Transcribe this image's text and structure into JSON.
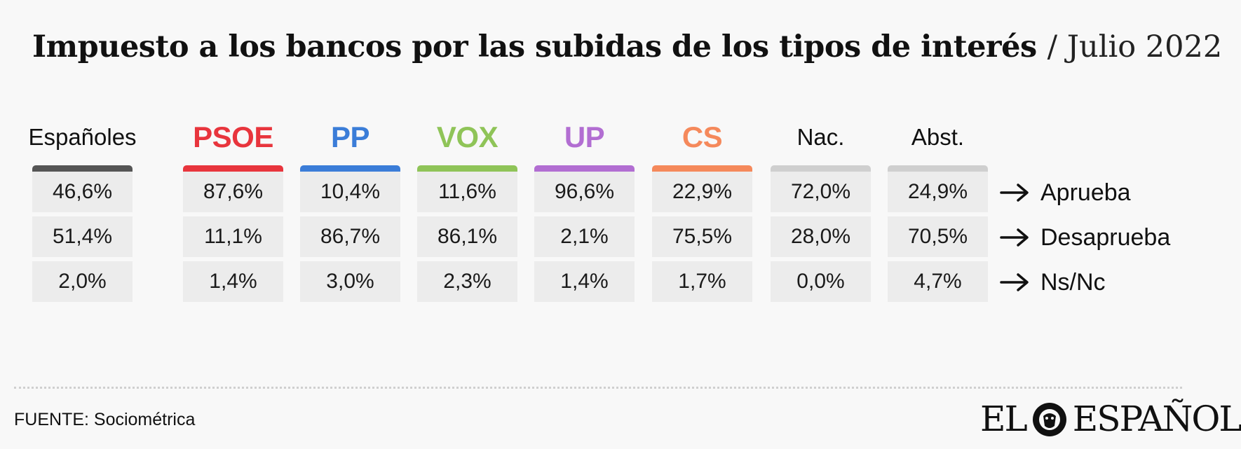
{
  "title": {
    "main": "Impuesto a los bancos por las subidas de los tipos de interés",
    "date": "/ Julio 2022"
  },
  "chart_data": {
    "type": "table",
    "title": "Impuesto a los bancos por las subidas de los tipos de interés / Julio 2022",
    "rows": [
      "Aprueba",
      "Desaprueba",
      "Ns/Nc"
    ],
    "columns": [
      {
        "name": "Españoles",
        "color": "#555555",
        "values": [
          "46,6%",
          "51,4%",
          "2,0%"
        ]
      },
      {
        "name": "PSOE",
        "color": "#e8353d",
        "values": [
          "87,6%",
          "11,1%",
          "1,4%"
        ]
      },
      {
        "name": "PP",
        "color": "#3b7dd8",
        "values": [
          "10,4%",
          "86,7%",
          "3,0%"
        ]
      },
      {
        "name": "VOX",
        "color": "#8fc458",
        "values": [
          "11,6%",
          "86,1%",
          "2,3%"
        ]
      },
      {
        "name": "UP",
        "color": "#b26ed2",
        "values": [
          "96,6%",
          "2,1%",
          "1,4%"
        ]
      },
      {
        "name": "CS",
        "color": "#f5895b",
        "values": [
          "22,9%",
          "75,5%",
          "1,7%"
        ]
      },
      {
        "name": "Nac.",
        "color": "#cfcfcf",
        "values": [
          "72,0%",
          "28,0%",
          "0,0%"
        ]
      },
      {
        "name": "Abst.",
        "color": "#cfcfcf",
        "values": [
          "24,9%",
          "70,5%",
          "4,7%"
        ]
      }
    ]
  },
  "footer": {
    "source": "FUENTE: Sociométrica"
  },
  "logo": {
    "text_left": "EL",
    "text_right": "ESPAÑOL"
  }
}
